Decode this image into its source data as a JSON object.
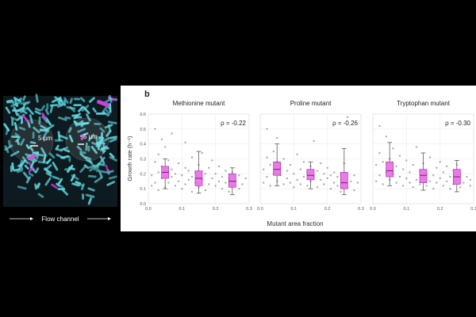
{
  "panel_a": {
    "scale_label_left": "5 µm",
    "scale_label_right": "5 µm",
    "flow_label": "Flow channel",
    "colors": {
      "cell_cyan": "#5fd8e0",
      "mutant_magenta": "#d13be0",
      "background": "#000000"
    }
  },
  "panel_b_letter": "b",
  "y_axis_label": "Growth rate (h⁻¹)",
  "x_axis_label": "Mutant area fraction",
  "chart_data": [
    {
      "type": "scatter",
      "title": "Methionine mutant",
      "annotation": "ρ = -0.22",
      "xlim": [
        0,
        0.3
      ],
      "ylim": [
        0,
        0.6
      ],
      "xticks": [
        "0.0",
        "0.1",
        "0.2",
        "0.3"
      ],
      "yticks": [
        "0.0",
        "0.1",
        "0.2",
        "0.3",
        "0.4",
        "0.5",
        "0.6"
      ],
      "boxes": [
        {
          "x": 0.05,
          "q1": 0.17,
          "median": 0.21,
          "q3": 0.25,
          "whisker_low": 0.1,
          "whisker_high": 0.3
        },
        {
          "x": 0.15,
          "q1": 0.12,
          "median": 0.17,
          "q3": 0.22,
          "whisker_low": 0.07,
          "whisker_high": 0.35
        },
        {
          "x": 0.25,
          "q1": 0.11,
          "median": 0.15,
          "q3": 0.2,
          "whisker_low": 0.06,
          "whisker_high": 0.24
        }
      ],
      "points": [
        [
          0.01,
          0.12
        ],
        [
          0.01,
          0.19
        ],
        [
          0.02,
          0.14
        ],
        [
          0.02,
          0.28
        ],
        [
          0.02,
          0.5
        ],
        [
          0.03,
          0.09
        ],
        [
          0.03,
          0.21
        ],
        [
          0.03,
          0.33
        ],
        [
          0.04,
          0.17
        ],
        [
          0.04,
          0.25
        ],
        [
          0.04,
          0.43
        ],
        [
          0.05,
          0.11
        ],
        [
          0.05,
          0.22
        ],
        [
          0.05,
          0.38
        ],
        [
          0.06,
          0.14
        ],
        [
          0.06,
          0.29
        ],
        [
          0.07,
          0.18
        ],
        [
          0.07,
          0.23
        ],
        [
          0.07,
          0.47
        ],
        [
          0.08,
          0.12
        ],
        [
          0.08,
          0.2
        ],
        [
          0.09,
          0.15
        ],
        [
          0.09,
          0.27
        ],
        [
          0.1,
          0.1
        ],
        [
          0.1,
          0.19
        ],
        [
          0.11,
          0.13
        ],
        [
          0.11,
          0.24
        ],
        [
          0.11,
          0.41
        ],
        [
          0.12,
          0.16
        ],
        [
          0.12,
          0.22
        ],
        [
          0.13,
          0.08
        ],
        [
          0.13,
          0.18
        ],
        [
          0.13,
          0.31
        ],
        [
          0.14,
          0.14
        ],
        [
          0.14,
          0.21
        ],
        [
          0.15,
          0.11
        ],
        [
          0.15,
          0.26
        ],
        [
          0.16,
          0.16
        ],
        [
          0.16,
          0.34
        ],
        [
          0.17,
          0.09
        ],
        [
          0.17,
          0.2
        ],
        [
          0.18,
          0.13
        ],
        [
          0.18,
          0.24
        ],
        [
          0.19,
          0.17
        ],
        [
          0.19,
          0.29
        ],
        [
          0.2,
          0.12
        ],
        [
          0.2,
          0.2
        ],
        [
          0.21,
          0.15
        ],
        [
          0.21,
          0.25
        ],
        [
          0.22,
          0.1
        ],
        [
          0.22,
          0.18
        ],
        [
          0.23,
          0.14
        ],
        [
          0.23,
          0.22
        ],
        [
          0.24,
          0.08
        ],
        [
          0.24,
          0.17
        ],
        [
          0.25,
          0.12
        ],
        [
          0.25,
          0.21
        ],
        [
          0.26,
          0.15
        ],
        [
          0.27,
          0.1
        ],
        [
          0.27,
          0.19
        ],
        [
          0.28,
          0.13
        ],
        [
          0.29,
          0.17
        ]
      ]
    },
    {
      "type": "scatter",
      "title": "Proline mutant",
      "annotation": "ρ = -0.26",
      "xlim": [
        0,
        0.3
      ],
      "ylim": [
        0,
        0.6
      ],
      "xticks": [
        "0.0",
        "0.1",
        "0.2",
        "0.3"
      ],
      "yticks": [],
      "boxes": [
        {
          "x": 0.05,
          "q1": 0.19,
          "median": 0.23,
          "q3": 0.28,
          "whisker_low": 0.12,
          "whisker_high": 0.4
        },
        {
          "x": 0.15,
          "q1": 0.16,
          "median": 0.19,
          "q3": 0.23,
          "whisker_low": 0.1,
          "whisker_high": 0.28
        },
        {
          "x": 0.25,
          "q1": 0.1,
          "median": 0.14,
          "q3": 0.21,
          "whisker_low": 0.06,
          "whisker_high": 0.37
        }
      ],
      "points": [
        [
          0.01,
          0.14
        ],
        [
          0.01,
          0.23
        ],
        [
          0.02,
          0.18
        ],
        [
          0.02,
          0.31
        ],
        [
          0.02,
          0.5
        ],
        [
          0.03,
          0.12
        ],
        [
          0.03,
          0.26
        ],
        [
          0.04,
          0.2
        ],
        [
          0.04,
          0.35
        ],
        [
          0.05,
          0.15
        ],
        [
          0.05,
          0.28
        ],
        [
          0.05,
          0.44
        ],
        [
          0.06,
          0.19
        ],
        [
          0.06,
          0.24
        ],
        [
          0.07,
          0.13
        ],
        [
          0.07,
          0.3
        ],
        [
          0.08,
          0.17
        ],
        [
          0.08,
          0.22
        ],
        [
          0.09,
          0.14
        ],
        [
          0.09,
          0.26
        ],
        [
          0.1,
          0.11
        ],
        [
          0.1,
          0.2
        ],
        [
          0.11,
          0.16
        ],
        [
          0.11,
          0.33
        ],
        [
          0.12,
          0.13
        ],
        [
          0.12,
          0.23
        ],
        [
          0.13,
          0.18
        ],
        [
          0.13,
          0.28
        ],
        [
          0.14,
          0.12
        ],
        [
          0.14,
          0.21
        ],
        [
          0.15,
          0.15
        ],
        [
          0.15,
          0.25
        ],
        [
          0.16,
          0.18
        ],
        [
          0.16,
          0.42
        ],
        [
          0.17,
          0.11
        ],
        [
          0.17,
          0.22
        ],
        [
          0.18,
          0.16
        ],
        [
          0.18,
          0.27
        ],
        [
          0.19,
          0.13
        ],
        [
          0.19,
          0.2
        ],
        [
          0.2,
          0.17
        ],
        [
          0.2,
          0.24
        ],
        [
          0.21,
          0.1
        ],
        [
          0.21,
          0.19
        ],
        [
          0.22,
          0.14
        ],
        [
          0.22,
          0.21
        ],
        [
          0.23,
          0.12
        ],
        [
          0.23,
          0.18
        ],
        [
          0.24,
          0.08
        ],
        [
          0.24,
          0.16
        ],
        [
          0.25,
          0.13
        ],
        [
          0.25,
          0.27
        ],
        [
          0.26,
          0.11
        ],
        [
          0.26,
          0.58
        ],
        [
          0.27,
          0.15
        ],
        [
          0.28,
          0.09
        ],
        [
          0.28,
          0.19
        ],
        [
          0.29,
          0.14
        ]
      ]
    },
    {
      "type": "scatter",
      "title": "Tryptophan mutant",
      "annotation": "ρ = -0.30",
      "xlim": [
        0,
        0.3
      ],
      "ylim": [
        0,
        0.6
      ],
      "xticks": [
        "0.0",
        "0.1",
        "0.2",
        "0.3"
      ],
      "yticks": [],
      "boxes": [
        {
          "x": 0.05,
          "q1": 0.18,
          "median": 0.22,
          "q3": 0.28,
          "whisker_low": 0.12,
          "whisker_high": 0.41
        },
        {
          "x": 0.15,
          "q1": 0.14,
          "median": 0.19,
          "q3": 0.23,
          "whisker_low": 0.09,
          "whisker_high": 0.34
        },
        {
          "x": 0.25,
          "q1": 0.13,
          "median": 0.18,
          "q3": 0.23,
          "whisker_low": 0.08,
          "whisker_high": 0.29
        }
      ],
      "points": [
        [
          0.01,
          0.15
        ],
        [
          0.01,
          0.26
        ],
        [
          0.02,
          0.19
        ],
        [
          0.02,
          0.34
        ],
        [
          0.02,
          0.52
        ],
        [
          0.03,
          0.13
        ],
        [
          0.03,
          0.28
        ],
        [
          0.04,
          0.21
        ],
        [
          0.04,
          0.45
        ],
        [
          0.05,
          0.16
        ],
        [
          0.05,
          0.3
        ],
        [
          0.06,
          0.2
        ],
        [
          0.06,
          0.37
        ],
        [
          0.07,
          0.14
        ],
        [
          0.07,
          0.25
        ],
        [
          0.08,
          0.18
        ],
        [
          0.08,
          0.32
        ],
        [
          0.09,
          0.12
        ],
        [
          0.09,
          0.23
        ],
        [
          0.1,
          0.17
        ],
        [
          0.1,
          0.29
        ],
        [
          0.11,
          0.14
        ],
        [
          0.11,
          0.21
        ],
        [
          0.12,
          0.11
        ],
        [
          0.12,
          0.26
        ],
        [
          0.13,
          0.16
        ],
        [
          0.13,
          0.38
        ],
        [
          0.14,
          0.13
        ],
        [
          0.14,
          0.22
        ],
        [
          0.15,
          0.18
        ],
        [
          0.15,
          0.27
        ],
        [
          0.16,
          0.12
        ],
        [
          0.16,
          0.2
        ],
        [
          0.17,
          0.15
        ],
        [
          0.17,
          0.31
        ],
        [
          0.18,
          0.1
        ],
        [
          0.18,
          0.19
        ],
        [
          0.19,
          0.14
        ],
        [
          0.19,
          0.24
        ],
        [
          0.2,
          0.17
        ],
        [
          0.2,
          0.28
        ],
        [
          0.21,
          0.12
        ],
        [
          0.21,
          0.21
        ],
        [
          0.22,
          0.15
        ],
        [
          0.22,
          0.25
        ],
        [
          0.23,
          0.1
        ],
        [
          0.23,
          0.18
        ],
        [
          0.24,
          0.13
        ],
        [
          0.24,
          0.22
        ],
        [
          0.25,
          0.16
        ],
        [
          0.25,
          0.26
        ],
        [
          0.26,
          0.11
        ],
        [
          0.26,
          0.2
        ],
        [
          0.27,
          0.14
        ],
        [
          0.28,
          0.18
        ],
        [
          0.29,
          0.12
        ],
        [
          0.29,
          0.16
        ]
      ]
    }
  ]
}
